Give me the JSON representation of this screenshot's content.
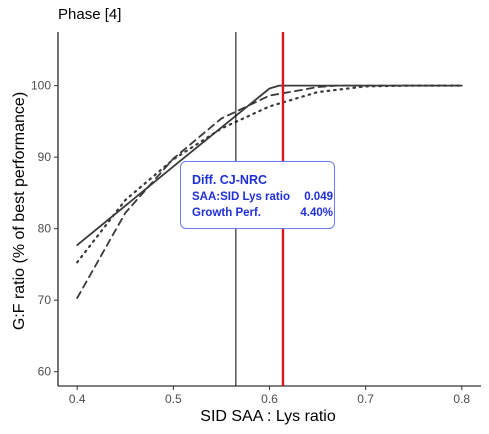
{
  "panel_title": "Phase [4]",
  "annotation": {
    "header": "Diff. CJ-NRC",
    "rows": [
      {
        "label": "SAA:SID Lys ratio",
        "value": "0.049"
      },
      {
        "label": "Growth Perf.",
        "value": "4.40%"
      }
    ],
    "text_color": "#1f2fd6",
    "border_color": "#6b7cf0"
  },
  "chart_data": {
    "type": "line",
    "xlabel": "SID SAA : Lys ratio",
    "ylabel": "G:F ratio (% of best performance)",
    "xlim": [
      0.38,
      0.82
    ],
    "ylim": [
      58.0,
      107.5
    ],
    "xticks": [
      0.4,
      0.5,
      0.6,
      0.7,
      0.8
    ],
    "yticks": [
      60,
      70,
      80,
      90,
      100
    ],
    "grid": false,
    "series": [
      {
        "style": "solid",
        "color": "#3a3a3a",
        "x": [
          0.4,
          0.5,
          0.6,
          0.61,
          0.7,
          0.8
        ],
        "y": [
          77.7,
          88.7,
          99.6,
          100.0,
          100.0,
          100.0
        ]
      },
      {
        "style": "dashed",
        "color": "#3a3a3a",
        "x": [
          0.4,
          0.45,
          0.5,
          0.55,
          0.6,
          0.65,
          0.67,
          0.7,
          0.8
        ],
        "y": [
          70.3,
          82.2,
          89.8,
          95.4,
          98.6,
          99.8,
          100.0,
          100.0,
          100.0
        ]
      },
      {
        "style": "dotted",
        "color": "#3a3a3a",
        "x": [
          0.4,
          0.45,
          0.5,
          0.55,
          0.6,
          0.65,
          0.7,
          0.75,
          0.8
        ],
        "y": [
          75.3,
          84.0,
          89.7,
          94.0,
          97.1,
          99.1,
          99.9,
          100.0,
          100.0
        ]
      }
    ],
    "vlines": [
      {
        "x": 0.565,
        "color": "#000000",
        "width": "thin"
      },
      {
        "x": 0.614,
        "color": "#e0141e",
        "width": "thick"
      }
    ]
  }
}
